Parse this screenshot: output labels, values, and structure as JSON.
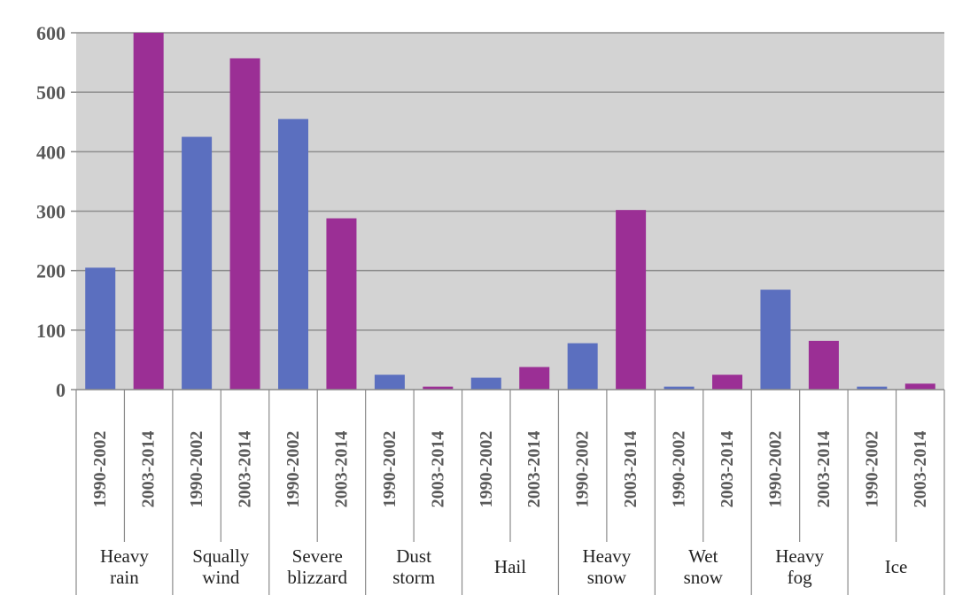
{
  "chart_data": {
    "type": "bar",
    "categories": [
      {
        "label": [
          "Heavy",
          "rain"
        ],
        "periods": [
          "1990-2002",
          "2003-2014"
        ],
        "values": [
          205,
          600
        ]
      },
      {
        "label": [
          "Squally",
          "wind"
        ],
        "periods": [
          "1990-2002",
          "2003-2014"
        ],
        "values": [
          425,
          557
        ]
      },
      {
        "label": [
          "Severe",
          "blizzard"
        ],
        "periods": [
          "1990-2002",
          "2003-2014"
        ],
        "values": [
          455,
          288
        ]
      },
      {
        "label": [
          "Dust",
          "storm"
        ],
        "periods": [
          "1990-2002",
          "2003-2014"
        ],
        "values": [
          25,
          5
        ]
      },
      {
        "label": [
          "Hail"
        ],
        "periods": [
          "1990-2002",
          "2003-2014"
        ],
        "values": [
          20,
          38
        ]
      },
      {
        "label": [
          "Heavy",
          "snow"
        ],
        "periods": [
          "1990-2002",
          "2003-2014"
        ],
        "values": [
          78,
          302
        ]
      },
      {
        "label": [
          "Wet",
          "snow"
        ],
        "periods": [
          "1990-2002",
          "2003-2014"
        ],
        "values": [
          5,
          25
        ]
      },
      {
        "label": [
          "Heavy",
          "fog"
        ],
        "periods": [
          "1990-2002",
          "2003-2014"
        ],
        "values": [
          168,
          82
        ]
      },
      {
        "label": [
          "Ice"
        ],
        "periods": [
          "1990-2002",
          "2003-2014"
        ],
        "values": [
          5,
          10
        ]
      }
    ],
    "yticks": [
      0,
      100,
      200,
      300,
      400,
      500,
      600
    ],
    "ylim": [
      0,
      600
    ],
    "grid": true,
    "title": "",
    "xlabel": "",
    "ylabel": "",
    "colors": {
      "period_1": "#5b6fbf",
      "period_2": "#9b2f95",
      "plot_bg": "#d3d3d3",
      "grid": "#8e8e8e"
    }
  }
}
